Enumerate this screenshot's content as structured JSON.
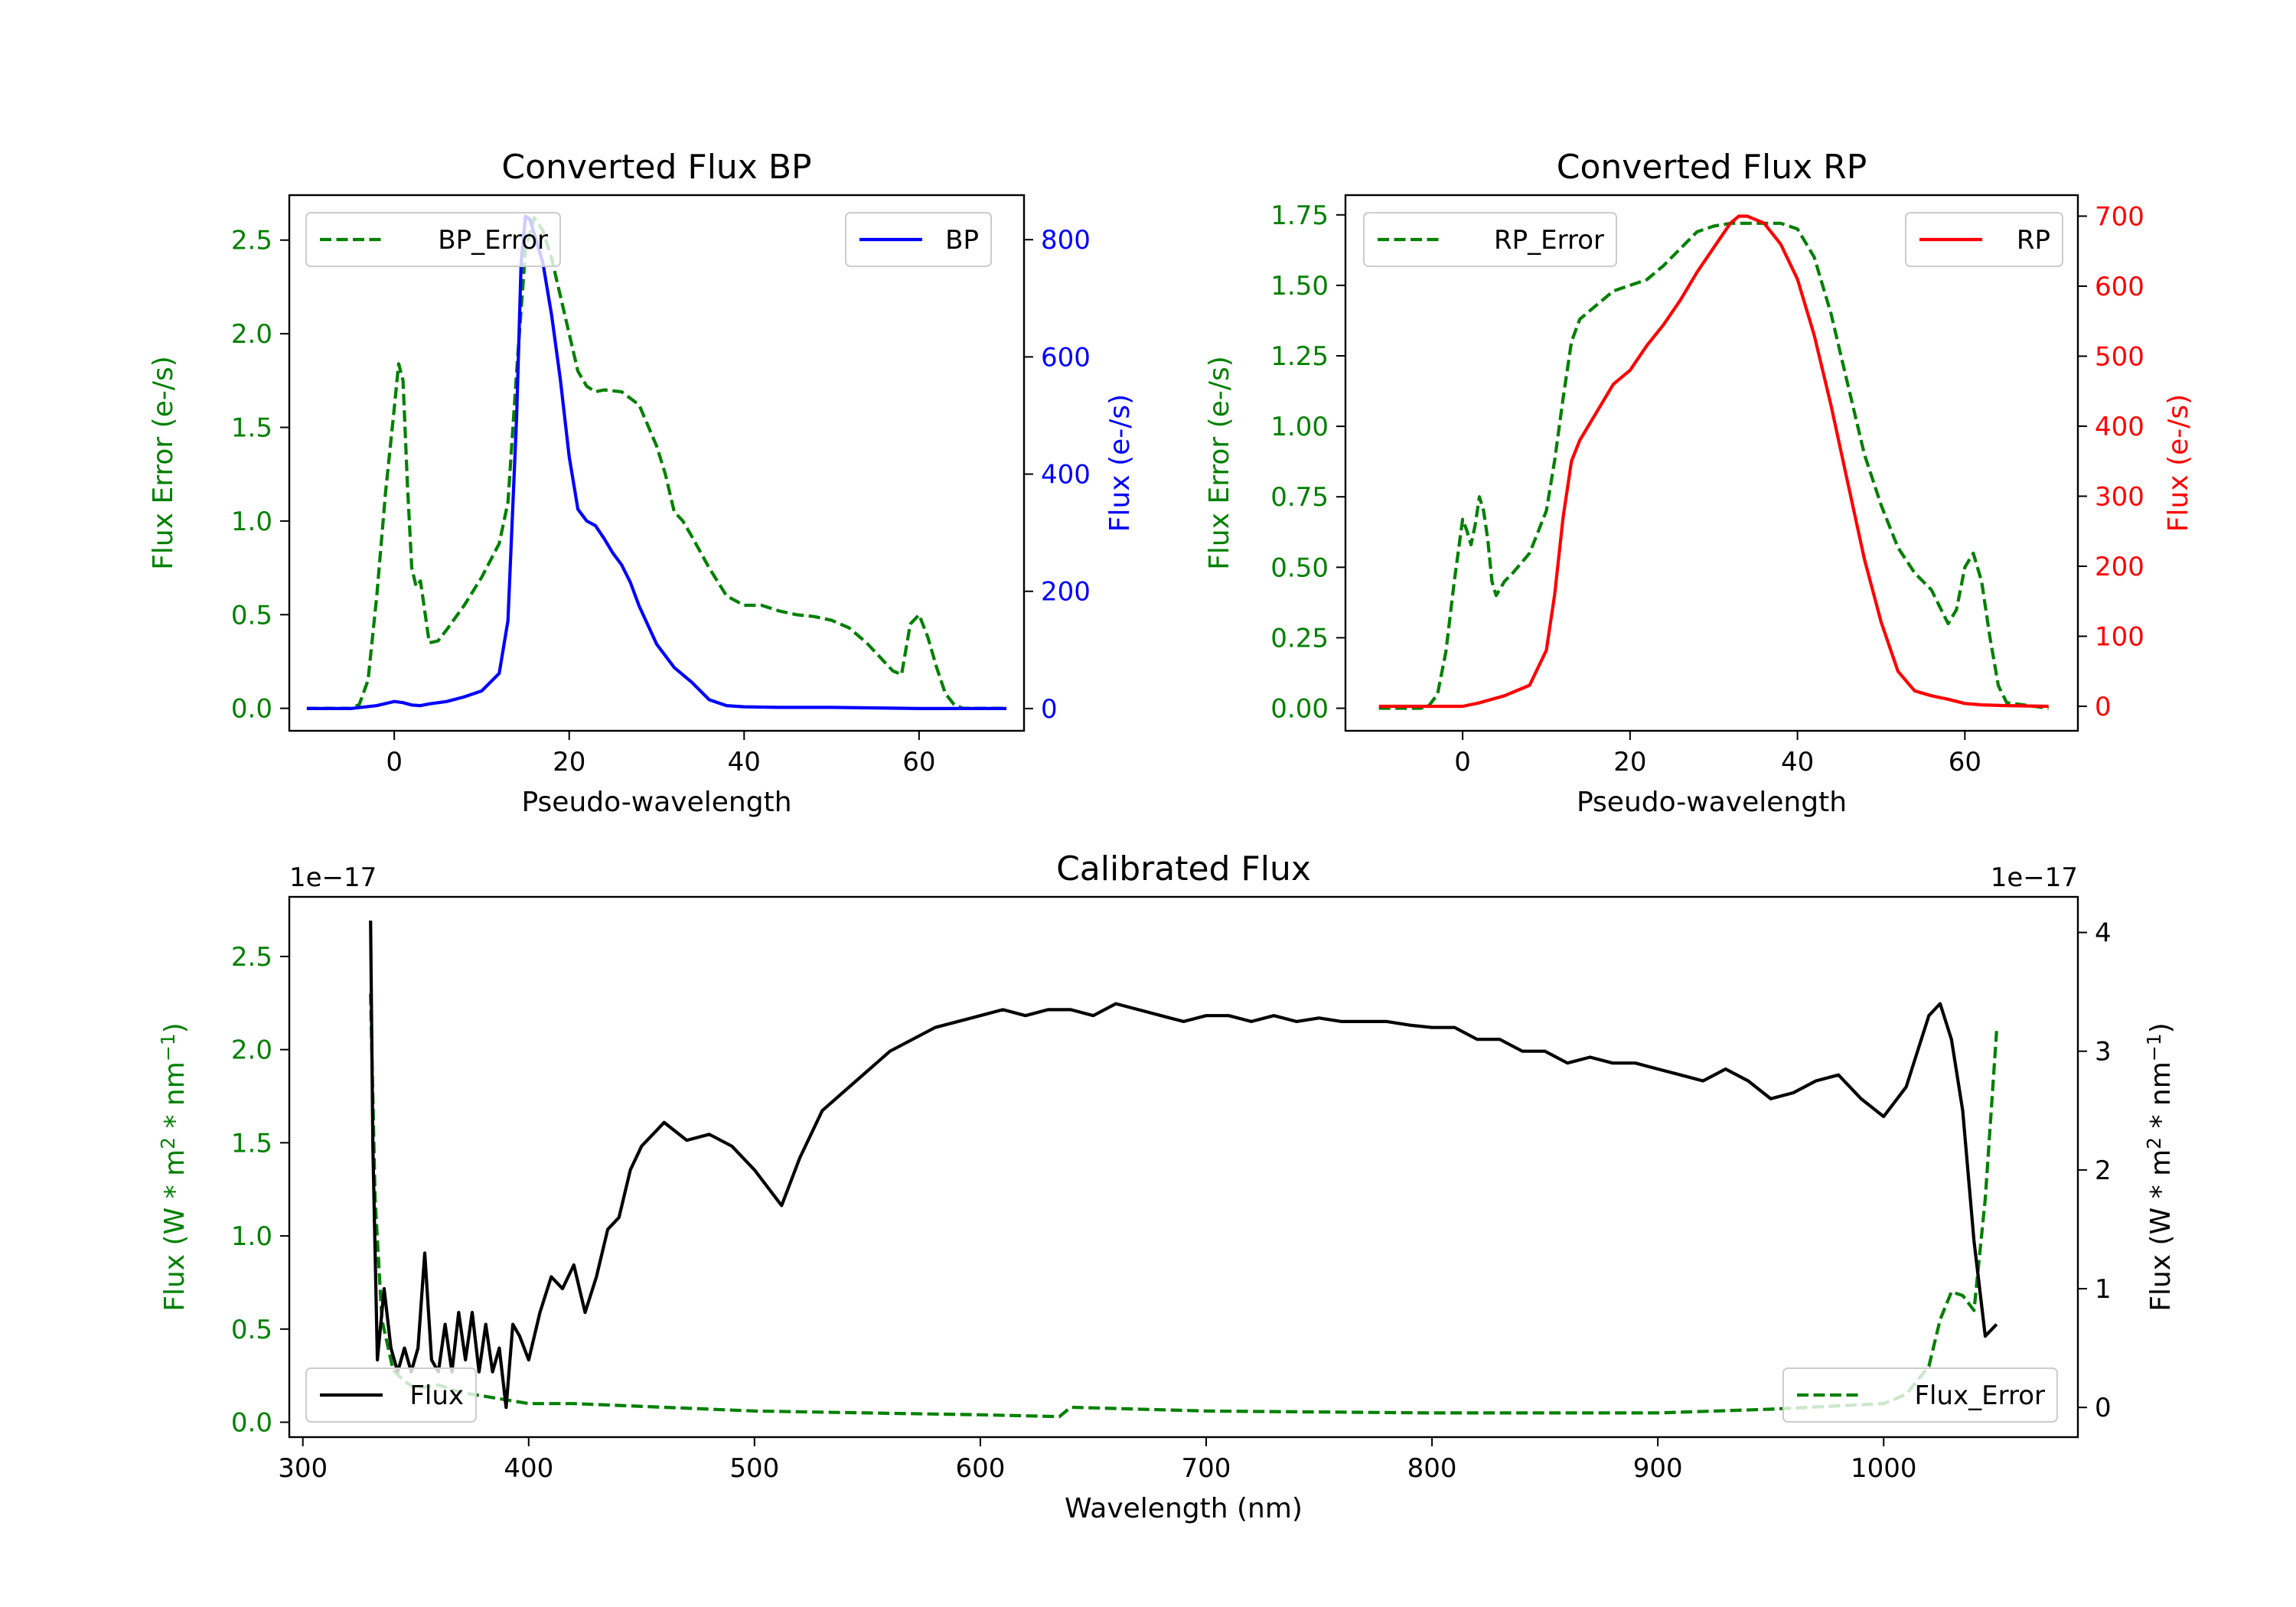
{
  "colors": {
    "green": "#008000",
    "blue": "#0000ff",
    "red": "#ff0000",
    "black": "#000000"
  },
  "chart_data": [
    {
      "id": "bp",
      "type": "line",
      "title": "Converted Flux BP",
      "xlabel": "Pseudo-wavelength",
      "ylabel_left": "Flux Error (e-/s)",
      "ylabel_right": "Flux (e-/s)",
      "xlim": [
        -12,
        72
      ],
      "ylim_left": [
        -0.12,
        2.74
      ],
      "ylim_right": [
        -38,
        876
      ],
      "xticks": [
        0,
        20,
        40,
        60
      ],
      "yticks_left": [
        "0.0",
        "0.5",
        "1.0",
        "1.5",
        "2.0",
        "2.5"
      ],
      "yticks_right": [
        "0",
        "200",
        "400",
        "600",
        "800"
      ],
      "series": [
        {
          "name": "BP_Error",
          "axis": "left",
          "style": "dashed",
          "color": "#008000",
          "x": [
            -10,
            -5,
            -4,
            -3,
            -2,
            -1,
            0,
            0.5,
            1,
            1.5,
            2,
            2.5,
            3,
            4,
            5,
            6,
            8,
            10,
            12,
            13,
            14,
            15,
            16,
            17,
            18,
            19,
            20,
            21,
            22,
            23,
            24,
            26,
            28,
            30,
            31,
            32,
            33,
            34,
            36,
            38,
            40,
            42,
            44,
            46,
            48,
            50,
            52,
            54,
            56,
            57,
            58,
            59,
            60,
            61,
            62,
            63,
            64,
            65,
            70
          ],
          "y": [
            0,
            0,
            0.02,
            0.15,
            0.6,
            1.15,
            1.6,
            1.84,
            1.75,
            1.2,
            0.75,
            0.65,
            0.68,
            0.35,
            0.36,
            0.42,
            0.55,
            0.7,
            0.88,
            1.1,
            1.8,
            2.45,
            2.62,
            2.55,
            2.4,
            2.2,
            2.0,
            1.8,
            1.72,
            1.69,
            1.7,
            1.69,
            1.62,
            1.4,
            1.25,
            1.05,
            1.0,
            0.92,
            0.75,
            0.6,
            0.55,
            0.55,
            0.52,
            0.5,
            0.49,
            0.47,
            0.43,
            0.35,
            0.25,
            0.2,
            0.18,
            0.45,
            0.5,
            0.38,
            0.22,
            0.08,
            0.02,
            0.0,
            0.0
          ]
        },
        {
          "name": "BP",
          "axis": "right",
          "style": "solid",
          "color": "#0000ff",
          "x": [
            -10,
            -5,
            -2,
            0,
            1,
            2,
            3,
            4,
            6,
            8,
            10,
            12,
            13,
            14,
            14.5,
            15,
            15.5,
            16,
            17,
            18,
            19,
            20,
            21,
            22,
            23,
            24,
            25,
            26,
            27,
            28,
            30,
            32,
            34,
            36,
            38,
            40,
            44,
            50,
            55,
            60,
            65,
            70
          ],
          "y": [
            0,
            0,
            5,
            12,
            10,
            6,
            5,
            8,
            12,
            20,
            30,
            60,
            150,
            500,
            760,
            840,
            835,
            810,
            760,
            670,
            560,
            430,
            340,
            320,
            312,
            290,
            265,
            245,
            215,
            175,
            110,
            70,
            45,
            15,
            5,
            3,
            2,
            2,
            1,
            0,
            0,
            0
          ]
        }
      ],
      "legend": [
        "BP_Error",
        "BP"
      ]
    },
    {
      "id": "rp",
      "type": "line",
      "title": "Converted Flux RP",
      "xlabel": "Pseudo-wavelength",
      "ylabel_left": "Flux Error (e-/s)",
      "ylabel_right": "Flux (e-/s)",
      "xlim": [
        -14,
        73.5
      ],
      "ylim_left": [
        -0.08,
        1.82
      ],
      "ylim_right": [
        -35,
        730
      ],
      "xticks": [
        0,
        20,
        40,
        60
      ],
      "yticks_left": [
        "0.00",
        "0.25",
        "0.50",
        "0.75",
        "1.00",
        "1.25",
        "1.50",
        "1.75"
      ],
      "yticks_right": [
        "0",
        "100",
        "200",
        "300",
        "400",
        "500",
        "600",
        "700"
      ],
      "series": [
        {
          "name": "RP_Error",
          "axis": "left",
          "style": "dashed",
          "color": "#008000",
          "x": [
            -10,
            -5,
            -4,
            -3,
            -2,
            -1,
            0,
            0.5,
            1,
            1.5,
            2,
            2.5,
            3,
            3.5,
            4,
            5,
            6,
            8,
            10,
            11,
            12,
            13,
            14,
            16,
            18,
            20,
            22,
            24,
            26,
            28,
            30,
            32,
            34,
            36,
            38,
            40,
            42,
            44,
            46,
            48,
            50,
            52,
            54,
            56,
            57,
            58,
            59,
            60,
            61,
            62,
            63,
            64,
            65,
            70
          ],
          "y": [
            0,
            0,
            0.01,
            0.05,
            0.2,
            0.45,
            0.67,
            0.63,
            0.58,
            0.65,
            0.75,
            0.7,
            0.6,
            0.45,
            0.4,
            0.45,
            0.48,
            0.55,
            0.7,
            0.88,
            1.1,
            1.3,
            1.38,
            1.43,
            1.48,
            1.5,
            1.52,
            1.57,
            1.63,
            1.69,
            1.71,
            1.72,
            1.72,
            1.72,
            1.72,
            1.7,
            1.6,
            1.4,
            1.15,
            0.9,
            0.72,
            0.57,
            0.48,
            0.42,
            0.36,
            0.3,
            0.35,
            0.5,
            0.55,
            0.45,
            0.25,
            0.08,
            0.02,
            0.0
          ]
        },
        {
          "name": "RP",
          "axis": "right",
          "style": "solid",
          "color": "#ff0000",
          "x": [
            -10,
            -5,
            0,
            2,
            5,
            8,
            10,
            11,
            12,
            13,
            14,
            16,
            18,
            20,
            22,
            24,
            26,
            28,
            30,
            32,
            33,
            34,
            36,
            38,
            40,
            42,
            44,
            46,
            48,
            50,
            52,
            54,
            56,
            58,
            60,
            62,
            65,
            70
          ],
          "y": [
            0,
            0,
            0,
            5,
            15,
            30,
            80,
            160,
            270,
            350,
            380,
            420,
            460,
            480,
            515,
            545,
            580,
            620,
            655,
            690,
            700,
            700,
            690,
            660,
            610,
            530,
            430,
            320,
            210,
            120,
            50,
            22,
            15,
            10,
            4,
            2,
            1,
            0
          ]
        }
      ],
      "legend": [
        "RP_Error",
        "RP"
      ]
    },
    {
      "id": "cal",
      "type": "line",
      "title": "Calibrated Flux",
      "xlabel": "Wavelength (nm)",
      "ylabel_left": "Flux (W * m^2 * nm^-1)",
      "ylabel_right": "Flux (W * m^2 * nm^-1)",
      "offset_left": "1e−17",
      "offset_right": "1e−17",
      "xlim": [
        294,
        1086
      ],
      "ylim_left": [
        -0.08,
        2.82
      ],
      "ylim_right": [
        -0.25,
        4.3
      ],
      "xticks": [
        300,
        400,
        500,
        600,
        700,
        800,
        900,
        1000
      ],
      "yticks_left": [
        "0.0",
        "0.5",
        "1.0",
        "1.5",
        "2.0",
        "2.5"
      ],
      "yticks_right": [
        "0",
        "1",
        "2",
        "3",
        "4"
      ],
      "series": [
        {
          "name": "Flux_Error",
          "axis": "left",
          "style": "dashed",
          "color": "#008000",
          "x": [
            330,
            332,
            335,
            340,
            345,
            350,
            360,
            370,
            380,
            390,
            400,
            420,
            440,
            460,
            500,
            550,
            600,
            635,
            640,
            700,
            800,
            900,
            950,
            1000,
            1010,
            1020,
            1025,
            1030,
            1035,
            1040,
            1045,
            1050
          ],
          "y": [
            2.3,
            1.2,
            0.55,
            0.28,
            0.22,
            0.18,
            0.2,
            0.16,
            0.14,
            0.12,
            0.1,
            0.1,
            0.09,
            0.08,
            0.06,
            0.05,
            0.04,
            0.03,
            0.08,
            0.06,
            0.05,
            0.05,
            0.07,
            0.1,
            0.15,
            0.3,
            0.55,
            0.7,
            0.68,
            0.6,
            1.2,
            2.1
          ]
        },
        {
          "name": "Flux",
          "axis": "right",
          "style": "solid",
          "color": "#000000",
          "x": [
            330,
            331,
            333,
            336,
            339,
            342,
            345,
            348,
            351,
            354,
            357,
            360,
            363,
            366,
            369,
            372,
            375,
            378,
            381,
            384,
            387,
            390,
            393,
            396,
            400,
            405,
            410,
            415,
            420,
            425,
            430,
            435,
            440,
            445,
            450,
            460,
            470,
            480,
            490,
            500,
            512,
            520,
            530,
            545,
            560,
            580,
            600,
            610,
            620,
            630,
            640,
            650,
            660,
            670,
            680,
            690,
            700,
            710,
            720,
            730,
            740,
            750,
            760,
            770,
            780,
            790,
            800,
            810,
            820,
            830,
            840,
            850,
            860,
            870,
            880,
            890,
            900,
            910,
            920,
            930,
            940,
            950,
            960,
            970,
            980,
            990,
            1000,
            1010,
            1020,
            1025,
            1030,
            1035,
            1040,
            1045,
            1050
          ],
          "y": [
            4.1,
            2.2,
            0.4,
            1.0,
            0.5,
            0.3,
            0.5,
            0.3,
            0.5,
            1.3,
            0.4,
            0.3,
            0.7,
            0.3,
            0.8,
            0.4,
            0.8,
            0.3,
            0.7,
            0.3,
            0.5,
            0.0,
            0.7,
            0.6,
            0.4,
            0.8,
            1.1,
            1.0,
            1.2,
            0.8,
            1.1,
            1.5,
            1.6,
            2.0,
            2.2,
            2.4,
            2.25,
            2.3,
            2.2,
            2.0,
            1.7,
            2.1,
            2.5,
            2.75,
            3.0,
            3.2,
            3.3,
            3.35,
            3.3,
            3.35,
            3.35,
            3.3,
            3.4,
            3.35,
            3.3,
            3.25,
            3.3,
            3.3,
            3.25,
            3.3,
            3.25,
            3.28,
            3.25,
            3.25,
            3.25,
            3.22,
            3.2,
            3.2,
            3.1,
            3.1,
            3.0,
            3.0,
            2.9,
            2.95,
            2.9,
            2.9,
            2.85,
            2.8,
            2.75,
            2.85,
            2.75,
            2.6,
            2.65,
            2.75,
            2.8,
            2.6,
            2.45,
            2.7,
            3.3,
            3.4,
            3.1,
            2.5,
            1.4,
            0.6,
            0.7
          ]
        }
      ],
      "legend": [
        "Flux",
        "Flux_Error"
      ]
    }
  ]
}
